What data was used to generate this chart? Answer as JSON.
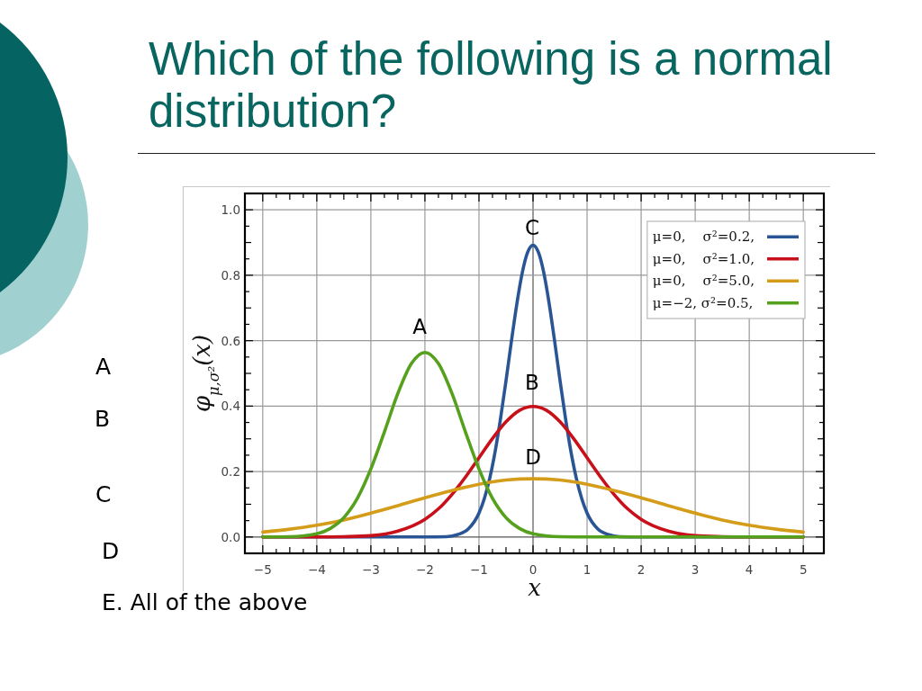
{
  "chart_data": {
    "type": "line",
    "title": "Which of the following is a normal distribution?",
    "xlabel": "x",
    "ylabel": "φ$_{μ,σ²}$(x)",
    "xlim": [
      -5.33,
      5.38
    ],
    "ylim": [
      -0.05,
      1.05
    ],
    "xticks": [
      {
        "value": -5,
        "label": "−5"
      },
      {
        "value": -4.75,
        "label": null
      },
      {
        "value": -4.5,
        "label": null
      },
      {
        "value": -4.25,
        "label": null
      },
      {
        "value": -4,
        "label": "−4"
      },
      {
        "value": -3.75,
        "label": null
      },
      {
        "value": -3.5,
        "label": null
      },
      {
        "value": -3.25,
        "label": null
      },
      {
        "value": -3,
        "label": "−3"
      },
      {
        "value": -2.75,
        "label": null
      },
      {
        "value": -2.5,
        "label": null
      },
      {
        "value": -2.25,
        "label": null
      },
      {
        "value": -2,
        "label": "−2"
      },
      {
        "value": -1.75,
        "label": null
      },
      {
        "value": -1.5,
        "label": null
      },
      {
        "value": -1.25,
        "label": null
      },
      {
        "value": -1,
        "label": "−1"
      },
      {
        "value": -0.75,
        "label": null
      },
      {
        "value": -0.5,
        "label": null
      },
      {
        "value": -0.25,
        "label": null
      },
      0,
      {
        "value": 0.25,
        "label": null
      },
      {
        "value": 0.5,
        "label": null
      },
      {
        "value": 0.75,
        "label": null
      },
      1,
      {
        "value": 1.25,
        "label": null
      },
      {
        "value": 1.5,
        "label": null
      },
      {
        "value": 1.75,
        "label": null
      },
      2,
      {
        "value": 2.25,
        "label": null
      },
      {
        "value": 2.5,
        "label": null
      },
      {
        "value": 2.75,
        "label": null
      },
      3,
      {
        "value": 3.25,
        "label": null
      },
      {
        "value": 3.5,
        "label": null
      },
      {
        "value": 3.75,
        "label": null
      },
      4,
      {
        "value": 4.25,
        "label": null
      },
      {
        "value": 4.5,
        "label": null
      },
      {
        "value": 4.75,
        "label": null
      },
      5
    ],
    "yticks": [
      {
        "value": 0,
        "label": "0.0"
      },
      {
        "value": 0.05,
        "label": null
      },
      {
        "value": 0.1,
        "label": null
      },
      {
        "value": 0.15,
        "label": null
      },
      0.2,
      {
        "value": 0.25,
        "label": null
      },
      {
        "value": 0.3,
        "label": null
      },
      {
        "value": 0.35,
        "label": null
      },
      0.4,
      {
        "value": 0.45,
        "label": null
      },
      {
        "value": 0.5,
        "label": null
      },
      {
        "value": 0.55,
        "label": null
      },
      0.6,
      {
        "value": 0.65,
        "label": null
      },
      {
        "value": 0.7,
        "label": null
      },
      {
        "value": 0.75,
        "label": null
      },
      0.8,
      {
        "value": 0.85,
        "label": null
      },
      {
        "value": 0.9,
        "label": null
      },
      {
        "value": 0.95,
        "label": null
      },
      {
        "value": 1,
        "label": "1.0"
      }
    ],
    "grid": true,
    "legend": "top right",
    "series": [
      {
        "name": "μ=0,    σ²=0.2,",
        "color": "#2a5595",
        "x": [
          -5,
          -2,
          -1.6,
          -1.4,
          -1.2,
          -1,
          -0.9,
          -0.8,
          -0.7,
          -0.6,
          -0.5,
          -0.4,
          -0.3,
          -0.2,
          -0.1,
          0,
          0.1,
          0.2,
          0.3,
          0.4,
          0.5,
          0.6,
          0.7,
          0.8,
          0.9,
          1,
          1.2,
          1.4,
          1.6,
          2,
          5
        ],
        "values": [
          0,
          0,
          0.001,
          0.007,
          0.024,
          0.073,
          0.118,
          0.18,
          0.262,
          0.363,
          0.477,
          0.598,
          0.712,
          0.807,
          0.87,
          0.892,
          0.87,
          0.807,
          0.712,
          0.598,
          0.477,
          0.363,
          0.262,
          0.18,
          0.118,
          0.073,
          0.024,
          0.007,
          0.001,
          0,
          0
        ]
      },
      {
        "name": "μ=0,    σ²=1.0,",
        "color": "#c8101a",
        "x": [
          -5,
          -4,
          -3.5,
          -3,
          -2.5,
          -2,
          -1.75,
          -1.5,
          -1.25,
          -1,
          -0.75,
          -0.5,
          -0.25,
          0,
          0.25,
          0.5,
          0.75,
          1,
          1.25,
          1.5,
          1.75,
          2,
          2.5,
          3,
          3.5,
          4,
          5
        ],
        "values": [
          0,
          0,
          0.001,
          0.004,
          0.018,
          0.054,
          0.086,
          0.13,
          0.183,
          0.242,
          0.301,
          0.352,
          0.387,
          0.399,
          0.387,
          0.352,
          0.301,
          0.242,
          0.183,
          0.13,
          0.086,
          0.054,
          0.018,
          0.004,
          0.001,
          0,
          0
        ]
      },
      {
        "name": "μ=0,    σ²=5.0,",
        "color": "#d59c1a",
        "x": [
          -5,
          -4.5,
          -4,
          -3.5,
          -3,
          -2.5,
          -2,
          -1.5,
          -1,
          -0.5,
          0,
          0.5,
          1,
          1.5,
          2,
          2.5,
          3,
          3.5,
          4,
          4.5,
          5
        ],
        "values": [
          0.015,
          0.024,
          0.036,
          0.052,
          0.073,
          0.096,
          0.12,
          0.142,
          0.161,
          0.174,
          0.178,
          0.174,
          0.161,
          0.142,
          0.12,
          0.096,
          0.073,
          0.052,
          0.036,
          0.024,
          0.015
        ]
      },
      {
        "name": "μ=−2, σ²=0.5,",
        "color": "#55a01c",
        "x": [
          -5,
          -4.5,
          -4,
          -3.75,
          -3.5,
          -3.25,
          -3,
          -2.75,
          -2.5,
          -2.25,
          -2,
          -1.75,
          -1.5,
          -1.25,
          -1,
          -0.75,
          -0.5,
          -0.25,
          0,
          0.5,
          1,
          5
        ],
        "values": [
          0,
          0.001,
          0.01,
          0.026,
          0.059,
          0.118,
          0.208,
          0.321,
          0.439,
          0.53,
          0.564,
          0.53,
          0.439,
          0.321,
          0.208,
          0.118,
          0.059,
          0.026,
          0.01,
          0.001,
          0,
          0
        ]
      }
    ],
    "annotations": [
      "C",
      "A",
      "B",
      "D",
      "A",
      "B",
      "C",
      "D",
      "E. All of the above"
    ]
  }
}
